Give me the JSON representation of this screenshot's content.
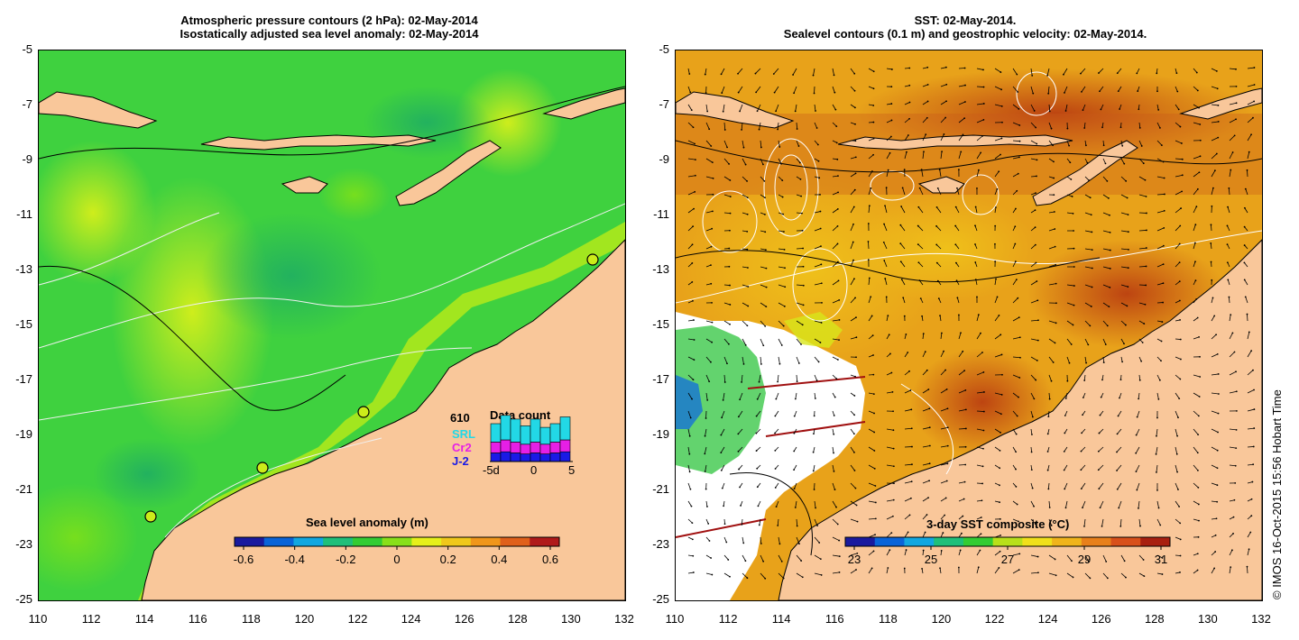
{
  "left_panel": {
    "title_line1": "Atmospheric pressure contours (2 hPa): 02-May-2014",
    "title_line2": "Isostatically adjusted sea level anomaly: 02-May-2014",
    "colorbar_title": "Sea level anomaly (m)",
    "colorbar_ticks": [
      "-0.6",
      "-0.4",
      "-0.2",
      "0",
      "0.2",
      "0.4",
      "0.6"
    ],
    "colorbar_colors": [
      "#1a1a9e",
      "#0a64d8",
      "#12a7e0",
      "#1fbf7a",
      "#33cc33",
      "#88e01a",
      "#e6f01a",
      "#f0c81a",
      "#f0961a",
      "#e0601a",
      "#b01a1a"
    ],
    "data_count": {
      "title": "Data count",
      "total": "610",
      "series": [
        {
          "name": "SRL",
          "color": "#22d8e6"
        },
        {
          "name": "Cr2",
          "color": "#e61fe6"
        },
        {
          "name": "J-2",
          "color": "#1a1ae6"
        }
      ],
      "x_ticks": [
        "-5d",
        "0",
        "5"
      ],
      "bars": [
        {
          "j2": 8,
          "cr2": 10,
          "srl": 12
        },
        {
          "j2": 9,
          "cr2": 11,
          "srl": 16
        },
        {
          "j2": 8,
          "cr2": 10,
          "srl": 15
        },
        {
          "j2": 7,
          "cr2": 9,
          "srl": 12
        },
        {
          "j2": 8,
          "cr2": 10,
          "srl": 15
        },
        {
          "j2": 7,
          "cr2": 9,
          "srl": 11
        },
        {
          "j2": 8,
          "cr2": 10,
          "srl": 12
        },
        {
          "j2": 9,
          "cr2": 11,
          "srl": 15
        }
      ]
    }
  },
  "right_panel": {
    "title_line1": "SST: 02-May-2014.",
    "title_line2": "Sealevel contours (0.1 m) and geostrophic velocity: 02-May-2014.",
    "colorbar_title": "3-day SST composite (°C)",
    "colorbar_ticks": [
      "23",
      "25",
      "27",
      "29",
      "31"
    ],
    "colorbar_colors": [
      "#1a1a9e",
      "#0a64d8",
      "#12a7e0",
      "#1fbf7a",
      "#33cc33",
      "#b8e01a",
      "#f0e01a",
      "#f0b41a",
      "#e8801a",
      "#d8501a",
      "#a82010"
    ]
  },
  "axes": {
    "y_ticks": [
      "-5",
      "-7",
      "-9",
      "-11",
      "-13",
      "-15",
      "-17",
      "-19",
      "-21",
      "-23",
      "-25"
    ],
    "x_ticks": [
      "110",
      "112",
      "114",
      "116",
      "118",
      "120",
      "122",
      "124",
      "126",
      "128",
      "130",
      "132"
    ]
  },
  "credit": "© IMOS 16-Oct-2015 15:56 Hobart Time",
  "colors": {
    "land": "#f9c79a",
    "ocean_left": "#3fd13f",
    "ocean_right": "#e8a21a"
  }
}
